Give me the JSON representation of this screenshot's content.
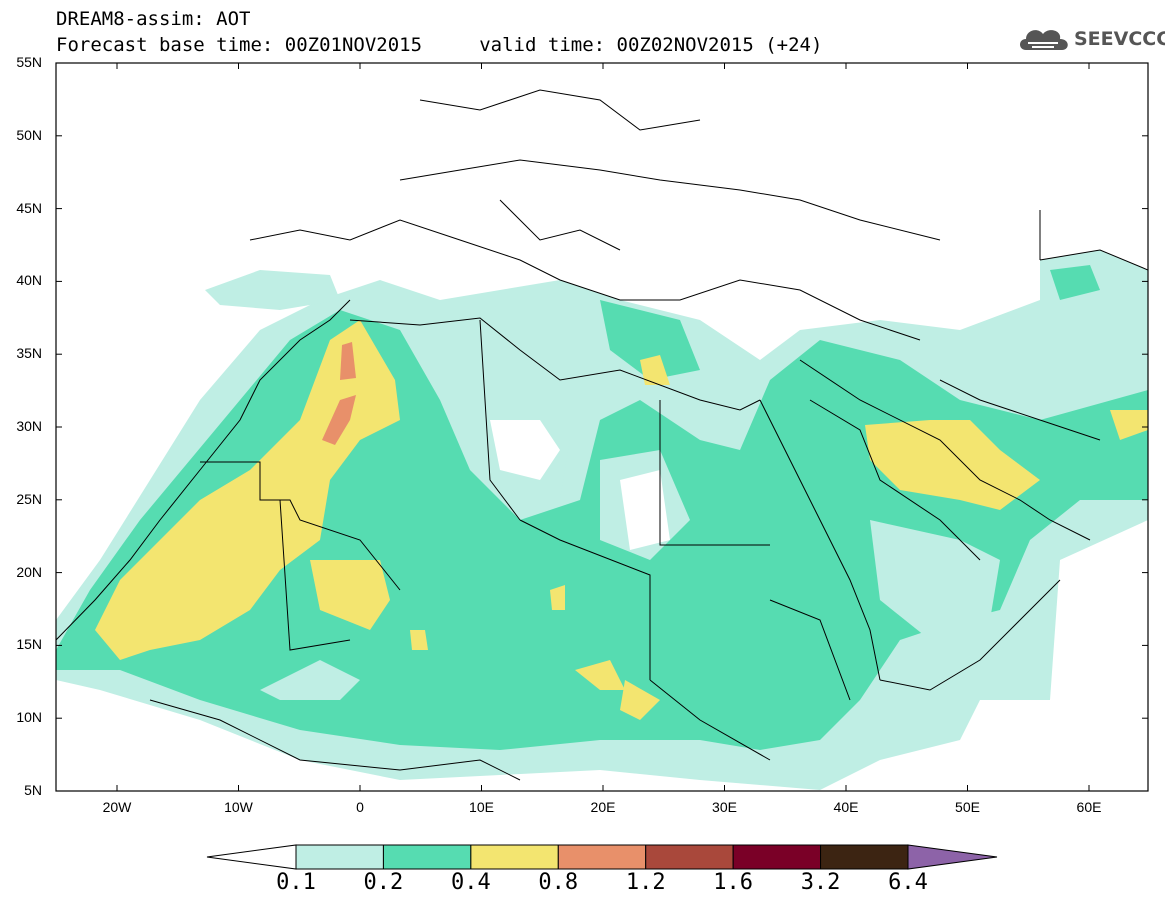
{
  "header": {
    "title_line1": "DREAM8-assim: AOT",
    "title_line2": "Forecast base time: 00Z01NOV2015     valid time: 00Z02NOV2015 (+24)"
  },
  "logo": {
    "text": "SEEVCCC",
    "icon": "cloud-icon"
  },
  "map": {
    "lat_labels": [
      "55N",
      "50N",
      "45N",
      "40N",
      "35N",
      "30N",
      "25N",
      "20N",
      "15N",
      "10N",
      "5N"
    ],
    "lon_labels": [
      "20W",
      "10W",
      "0",
      "10E",
      "20E",
      "30E",
      "40E",
      "50E",
      "60E"
    ]
  },
  "colorbar": {
    "labels": [
      "0.1",
      "0.2",
      "0.4",
      "0.8",
      "1.2",
      "1.6",
      "3.2",
      "6.4"
    ],
    "colors": [
      "#bfeee4",
      "#56dcb1",
      "#f3e570",
      "#e8906a",
      "#a9483b",
      "#7a0027",
      "#3c2412",
      "#8d63a8"
    ]
  },
  "colors": {
    "level1": "#bfeee4",
    "level2": "#56dcb1",
    "level3": "#f3e570",
    "level4": "#e8906a",
    "border": "#000000"
  }
}
